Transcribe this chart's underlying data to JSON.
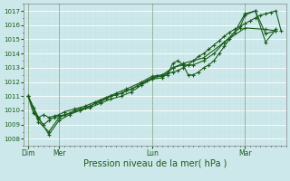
{
  "xlabel": "Pression niveau de la mer( hPa )",
  "bg_color": "#cce8ea",
  "line_color": "#1a5c1a",
  "grid_color": "#b0d8db",
  "ylim": [
    1007.5,
    1017.5
  ],
  "yticks": [
    1008,
    1009,
    1010,
    1011,
    1012,
    1013,
    1014,
    1015,
    1016,
    1017
  ],
  "day_labels": [
    "Dim",
    "Mer",
    "Lun",
    "Mar"
  ],
  "day_positions": [
    0,
    36,
    144,
    252
  ],
  "total_hours": 300,
  "series": {
    "s1_x": [
      0,
      6,
      12,
      18,
      24,
      30,
      36,
      42,
      48,
      54,
      60,
      66,
      72,
      78,
      84,
      90,
      96,
      102,
      108,
      114,
      120,
      126,
      132,
      138,
      144,
      150,
      156,
      162,
      168,
      174,
      180,
      186,
      192,
      198,
      204,
      210,
      216,
      222,
      228,
      234,
      240,
      246,
      252,
      258,
      264,
      270,
      276,
      282,
      288,
      294
    ],
    "s1_y": [
      1011.0,
      1010.2,
      1009.4,
      1009.0,
      1009.3,
      1009.5,
      1009.6,
      1009.7,
      1009.8,
      1010.0,
      1010.1,
      1010.2,
      1010.3,
      1010.5,
      1010.6,
      1010.8,
      1011.0,
      1011.1,
      1011.2,
      1011.4,
      1011.5,
      1011.7,
      1011.9,
      1012.1,
      1012.3,
      1012.4,
      1012.5,
      1012.6,
      1012.7,
      1012.8,
      1013.0,
      1013.2,
      1013.5,
      1013.8,
      1014.0,
      1014.3,
      1014.6,
      1014.9,
      1015.2,
      1015.5,
      1015.7,
      1015.9,
      1016.1,
      1016.3,
      1016.5,
      1016.7,
      1016.8,
      1016.9,
      1017.0,
      1015.6
    ],
    "s2_x": [
      0,
      12,
      24,
      36,
      48,
      60,
      72,
      84,
      96,
      108,
      120,
      132,
      144,
      150,
      156,
      162,
      168,
      174,
      180,
      186,
      192,
      198,
      204,
      210,
      216,
      222,
      228,
      234,
      240,
      246,
      252,
      264,
      276,
      288
    ],
    "s2_y": [
      1011.0,
      1009.2,
      1008.5,
      1009.5,
      1009.8,
      1010.0,
      1010.2,
      1010.5,
      1010.8,
      1011.0,
      1011.3,
      1011.8,
      1012.2,
      1012.4,
      1012.4,
      1012.5,
      1013.3,
      1013.5,
      1013.2,
      1012.5,
      1012.5,
      1012.7,
      1013.0,
      1013.2,
      1013.5,
      1014.0,
      1014.5,
      1015.0,
      1015.5,
      1015.8,
      1016.7,
      1017.0,
      1015.4,
      1015.6
    ],
    "s3_x": [
      0,
      12,
      24,
      36,
      48,
      60,
      72,
      84,
      96,
      108,
      120,
      132,
      144,
      156,
      168,
      180,
      192,
      204,
      216,
      228,
      240,
      252,
      264,
      276,
      288
    ],
    "s3_y": [
      1011.0,
      1009.5,
      1008.3,
      1009.3,
      1009.7,
      1010.0,
      1010.3,
      1010.7,
      1011.0,
      1011.2,
      1011.5,
      1011.9,
      1012.2,
      1012.3,
      1013.0,
      1013.2,
      1013.2,
      1013.5,
      1014.0,
      1014.8,
      1015.5,
      1016.8,
      1017.0,
      1014.8,
      1015.7
    ],
    "s4_x": [
      0,
      6,
      12,
      18,
      24,
      30,
      36,
      42,
      54,
      66,
      78,
      90,
      102,
      114,
      132,
      144,
      156,
      168,
      180,
      204,
      228,
      252,
      276,
      288
    ],
    "s4_y": [
      1011.0,
      1009.8,
      1009.5,
      1009.7,
      1009.5,
      1009.6,
      1009.7,
      1009.9,
      1010.1,
      1010.3,
      1010.6,
      1010.9,
      1011.2,
      1011.5,
      1012.0,
      1012.4,
      1012.5,
      1013.0,
      1013.3,
      1013.7,
      1014.8,
      1015.8,
      1015.7,
      1015.6
    ]
  }
}
